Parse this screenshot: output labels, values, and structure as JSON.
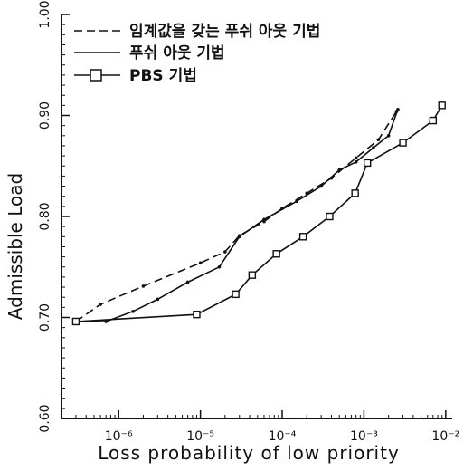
{
  "chart_data": {
    "type": "line",
    "xlabel": "Loss probability of low priority",
    "ylabel": "Admissible Load",
    "xscale": "log",
    "xlim": [
      2e-07,
      0.012
    ],
    "ylim": [
      0.6,
      1.0
    ],
    "xticks": [
      {
        "value": 1e-06,
        "label": "10⁻⁶"
      },
      {
        "value": 1e-05,
        "label": "10⁻⁵"
      },
      {
        "value": 0.0001,
        "label": "10⁻⁴"
      },
      {
        "value": 0.001,
        "label": "10⁻³"
      },
      {
        "value": 0.01,
        "label": "10⁻²"
      }
    ],
    "yticks": [
      {
        "value": 0.6,
        "label": "0.60"
      },
      {
        "value": 0.7,
        "label": "0.70"
      },
      {
        "value": 0.8,
        "label": "0.80"
      },
      {
        "value": 0.9,
        "label": "0.90"
      },
      {
        "value": 1.0,
        "label": "1.00"
      }
    ],
    "grid": false,
    "legend_position": "top-left",
    "series": [
      {
        "name": "임계값을 갖는 푸쉬 아웃 기법",
        "style": "dashed",
        "marker": "dot",
        "color": "#111111",
        "x": [
          3e-07,
          6e-07,
          2e-06,
          1e-05,
          2e-05,
          3e-05,
          6e-05,
          0.0001,
          0.0002,
          0.0004,
          0.0008,
          0.0015,
          0.0025
        ],
        "y": [
          0.696,
          0.713,
          0.731,
          0.754,
          0.765,
          0.781,
          0.795,
          0.808,
          0.823,
          0.838,
          0.858,
          0.876,
          0.904
        ]
      },
      {
        "name": "푸쉬 아웃 기법",
        "style": "solid",
        "marker": "dot",
        "color": "#111111",
        "x": [
          3e-07,
          7e-07,
          1.5e-06,
          3e-06,
          7e-06,
          1.7e-05,
          3e-05,
          6e-05,
          0.00015,
          0.0003,
          0.0005,
          0.0008,
          0.0013,
          0.002,
          0.0026
        ],
        "y": [
          0.696,
          0.696,
          0.706,
          0.718,
          0.735,
          0.75,
          0.78,
          0.797,
          0.815,
          0.83,
          0.846,
          0.854,
          0.868,
          0.88,
          0.906
        ]
      },
      {
        "name": "PBS 기법",
        "style": "solid",
        "marker": "square",
        "color": "#111111",
        "x": [
          3e-07,
          9e-06,
          2.7e-05,
          4.3e-05,
          8.5e-05,
          0.00018,
          0.00038,
          0.00078,
          0.0011,
          0.003,
          0.007,
          0.009
        ],
        "y": [
          0.696,
          0.703,
          0.723,
          0.742,
          0.763,
          0.78,
          0.8,
          0.823,
          0.853,
          0.873,
          0.895,
          0.91
        ]
      }
    ]
  }
}
